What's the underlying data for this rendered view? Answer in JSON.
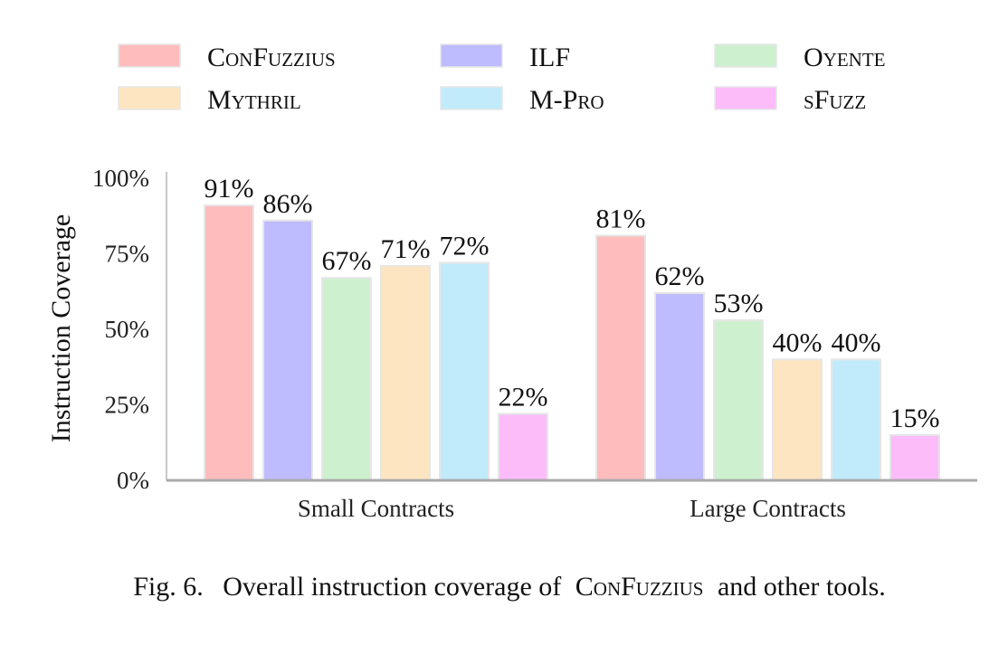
{
  "chart_data": {
    "type": "bar",
    "categories": [
      "Small Contracts",
      "Large Contracts"
    ],
    "series": [
      {
        "name": "ConFuzzius",
        "color": "#ffbcbc",
        "values": [
          91,
          81
        ],
        "labels": [
          "91%",
          "81%"
        ]
      },
      {
        "name": "ILF",
        "color": "#bebcff",
        "values": [
          86,
          62
        ],
        "labels": [
          "86%",
          "62%"
        ]
      },
      {
        "name": "Oyente",
        "color": "#cdf1cf",
        "values": [
          67,
          53
        ],
        "labels": [
          "67%",
          "53%"
        ]
      },
      {
        "name": "Mythril",
        "color": "#fde5c1",
        "values": [
          71,
          40
        ],
        "labels": [
          "71%",
          "40%"
        ]
      },
      {
        "name": "M-Pro",
        "color": "#c1ebfa",
        "values": [
          72,
          40
        ],
        "labels": [
          "72%",
          "40%"
        ]
      },
      {
        "name": "sFuzz",
        "color": "#fcbcfa",
        "values": [
          22,
          15
        ],
        "labels": [
          "22%",
          "15%"
        ]
      }
    ],
    "ylabel": "Instruction Coverage",
    "ylim": [
      0,
      100
    ],
    "yticks": [
      0,
      25,
      50,
      75,
      100
    ],
    "ytick_labels": [
      "0%",
      "25%",
      "50%",
      "75%",
      "100%"
    ],
    "grid": false,
    "legend_position": "top"
  },
  "caption": {
    "prefix": "Fig. 6.",
    "text_before": "Overall instruction coverage of",
    "tool_name": "ConFuzzius",
    "text_after": "and other tools."
  }
}
